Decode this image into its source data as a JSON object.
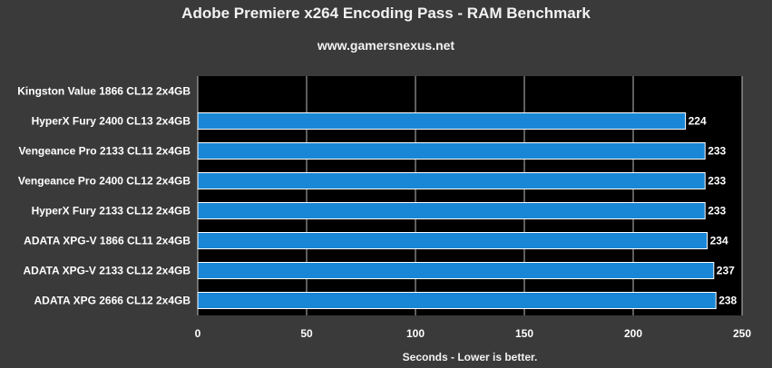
{
  "chart_data": {
    "type": "bar",
    "orientation": "horizontal",
    "title": "Adobe Premiere x264 Encoding Pass - RAM Benchmark",
    "subtitle": "www.gamersnexus.net",
    "xlabel": "Seconds - Lower is better.",
    "ylabel": "",
    "categories": [
      "Kingston Value 1866 CL12 2x4GB",
      "HyperX Fury 2400 CL13 2x4GB",
      "Vengeance Pro 2133 CL11 2x4GB",
      "Vengeance Pro 2400 CL12 2x4GB",
      "HyperX Fury 2133 CL12 2x4GB",
      "ADATA XPG-V 1866 CL11 2x4GB",
      "ADATA XPG-V 2133 CL12 2x4GB",
      "ADATA XPG 2666 CL12 2x4GB"
    ],
    "values": [
      null,
      224,
      233,
      233,
      233,
      234,
      237,
      238
    ],
    "data_labels": [
      "",
      "224",
      "233",
      "233",
      "233",
      "234",
      "237",
      "238"
    ],
    "xlim": [
      0,
      250
    ],
    "xticks": [
      0,
      50,
      100,
      150,
      200,
      250
    ],
    "grid": true,
    "bar_color": "#1a87d6"
  }
}
